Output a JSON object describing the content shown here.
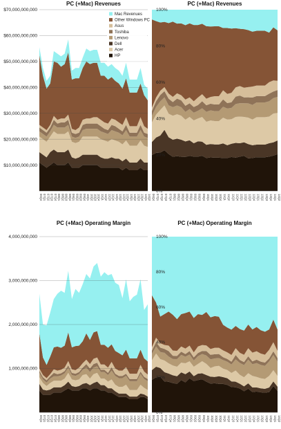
{
  "chart_data": [
    {
      "type": "area",
      "mode": "absolute",
      "title": "PC (+Mac) Revenues",
      "ylim": [
        0,
        70000000000
      ],
      "yticks": [
        10000000000,
        20000000000,
        30000000000,
        40000000000,
        50000000000,
        60000000000,
        70000000000
      ],
      "ytick_labels": [
        "$10,000,000,000",
        "$20,000,000,000",
        "$30,000,000,000",
        "$40,000,000,000",
        "$50,000,000,000",
        "$60,000,000,000",
        "$70,000,000,000"
      ],
      "grid": true,
      "legend": "top-right",
      "categories": [
        "06Q4",
        "07Q1",
        "07Q2",
        "07Q3",
        "07Q4",
        "08Q1",
        "08Q2",
        "08Q3",
        "08Q4",
        "09Q1",
        "09Q2",
        "09Q3",
        "09Q4",
        "10Q1",
        "10Q2",
        "10Q3",
        "10Q4",
        "11Q1",
        "11Q2",
        "11Q3",
        "11Q4",
        "12Q1",
        "12Q2",
        "12Q3",
        "12Q4",
        "13Q1",
        "13Q2",
        "13Q3",
        "13Q4",
        "14Q1",
        "14Q2"
      ],
      "series": [
        {
          "name": "HP",
          "values": [
            11,
            10,
            9,
            10,
            11,
            10,
            10,
            10,
            11,
            9,
            9,
            9,
            10,
            10,
            10,
            10,
            10,
            9,
            9,
            9,
            9,
            9,
            9,
            8,
            9,
            8,
            8,
            8,
            9,
            8,
            8
          ]
        },
        {
          "name": "Dell",
          "values": [
            4,
            4,
            4,
            5,
            5,
            5,
            5,
            5,
            5,
            4,
            3.5,
            4,
            4,
            4,
            4,
            4,
            4,
            4,
            3.5,
            3.5,
            4,
            3.5,
            3.5,
            3.5,
            3.5,
            3,
            3,
            3,
            3.5,
            3,
            3
          ]
        },
        {
          "name": "Acer",
          "values": [
            6,
            6,
            6,
            6,
            7,
            7,
            7,
            7,
            7,
            6,
            6,
            6,
            7,
            7,
            7,
            7,
            7,
            7,
            7,
            6.5,
            7,
            7,
            6.5,
            6.5,
            7,
            6.5,
            6.5,
            6.5,
            7,
            6.5,
            6
          ]
        },
        {
          "name": "Lenovo",
          "values": [
            2,
            2,
            2,
            2,
            2.5,
            2.5,
            2.5,
            2.5,
            2.5,
            2,
            2,
            2,
            2.5,
            3,
            3,
            3,
            3,
            3,
            3,
            3,
            3.5,
            3.5,
            3.5,
            3.5,
            4,
            3.5,
            3.5,
            3.5,
            4,
            3.5,
            3.5
          ]
        },
        {
          "name": "Toshiba",
          "values": [
            1.5,
            1.5,
            1.5,
            1.5,
            2,
            1.5,
            2,
            2,
            2,
            1.5,
            1.5,
            1.5,
            2,
            2,
            2,
            2,
            2,
            2,
            1.5,
            1.5,
            2,
            2,
            1.5,
            1.5,
            2,
            1.5,
            1.5,
            1.5,
            2,
            1.5,
            1.5
          ]
        },
        {
          "name": "Asus",
          "values": [
            1,
            1,
            1,
            1,
            1.5,
            1.5,
            1.5,
            1.5,
            2,
            1.5,
            1.5,
            2,
            2,
            2,
            2,
            2.5,
            2.5,
            2.5,
            2.5,
            2.5,
            2.5,
            2.5,
            2.5,
            2.5,
            3,
            2.5,
            2.5,
            2.5,
            3,
            2.5,
            2
          ]
        },
        {
          "name": "Other Windows PC",
          "values": [
            27,
            20,
            16,
            16,
            21,
            22,
            20,
            21,
            24,
            19,
            20,
            19,
            20,
            22,
            21,
            21,
            21,
            17,
            18,
            17,
            16,
            15,
            15,
            14,
            15,
            13,
            13,
            13,
            13,
            12,
            11
          ]
        },
        {
          "name": "Mac Revenues",
          "values": [
            3,
            3,
            3,
            3,
            4,
            3.5,
            4,
            4,
            5,
            3.5,
            4,
            4,
            4,
            5,
            5,
            5,
            5,
            5,
            5,
            5,
            5,
            5,
            5,
            5,
            6,
            5,
            5,
            5,
            6,
            4,
            4.5
          ]
        }
      ]
    },
    {
      "type": "area",
      "mode": "percent",
      "title": "PC (+Mac) Revenues",
      "ylim": [
        0,
        100
      ],
      "yticks": [
        0,
        20,
        40,
        60,
        80,
        100
      ],
      "ytick_labels": [
        "0%",
        "20%",
        "40%",
        "60%",
        "80%",
        "100%"
      ],
      "categories": [
        "06Q4",
        "07Q1",
        "07Q2",
        "07Q3",
        "07Q4",
        "08Q1",
        "08Q2",
        "08Q3",
        "08Q4",
        "09Q1",
        "09Q2",
        "09Q3",
        "09Q4",
        "10Q1",
        "10Q2",
        "10Q3",
        "10Q4",
        "11Q1",
        "11Q2",
        "11Q3",
        "11Q4",
        "12Q1",
        "12Q2",
        "12Q3",
        "12Q4",
        "13Q1",
        "13Q2",
        "13Q3",
        "13Q4",
        "14Q1",
        "14Q2"
      ],
      "series_ref": 0
    },
    {
      "type": "area",
      "mode": "absolute",
      "title": "PC (+Mac) Operating Margin",
      "ylim": [
        0,
        4000000000
      ],
      "yticks": [
        1000000000,
        2000000000,
        3000000000,
        4000000000
      ],
      "ytick_labels": [
        "1,000,000,000",
        "2,000,000,000",
        "3,000,000,000",
        "4,000,000,000"
      ],
      "grid": true,
      "categories": [
        "06Q4",
        "07Q1",
        "07Q2",
        "07Q3",
        "07Q4",
        "08Q1",
        "08Q2",
        "08Q3",
        "08Q4",
        "09Q1",
        "09Q2",
        "09Q3",
        "09Q4",
        "10Q1",
        "10Q2",
        "10Q3",
        "10Q4",
        "11Q1",
        "11Q2",
        "11Q3",
        "11Q4",
        "12Q1",
        "12Q2",
        "12Q3",
        "12Q4",
        "13Q1",
        "13Q2",
        "13Q3",
        "13Q4",
        "14Q1",
        "14Q2"
      ],
      "series": [
        {
          "name": "HP",
          "values": [
            0.5,
            0.4,
            0.4,
            0.4,
            0.45,
            0.45,
            0.45,
            0.5,
            0.55,
            0.5,
            0.5,
            0.5,
            0.55,
            0.55,
            0.5,
            0.55,
            0.55,
            0.5,
            0.5,
            0.45,
            0.45,
            0.4,
            0.35,
            0.35,
            0.35,
            0.3,
            0.3,
            0.3,
            0.35,
            0.35,
            0.3
          ]
        },
        {
          "name": "Dell",
          "values": [
            0.15,
            0.12,
            0.1,
            0.12,
            0.12,
            0.12,
            0.12,
            0.12,
            0.15,
            0.1,
            0.08,
            0.1,
            0.1,
            0.12,
            0.12,
            0.12,
            0.15,
            0.12,
            0.12,
            0.1,
            0.1,
            0.08,
            0.08,
            0.08,
            0.08,
            0.06,
            0.06,
            0.06,
            0.08,
            0.06,
            0.06
          ]
        },
        {
          "name": "Acer",
          "values": [
            0.15,
            0.15,
            0.1,
            0.15,
            0.15,
            0.15,
            0.15,
            0.15,
            0.2,
            0.15,
            0.15,
            0.15,
            0.2,
            0.2,
            0.15,
            0.2,
            0.2,
            0.15,
            0.15,
            0.15,
            0.2,
            0.15,
            0.15,
            0.15,
            0.2,
            0.15,
            0.15,
            0.15,
            0.2,
            0.15,
            0.15
          ]
        },
        {
          "name": "Lenovo",
          "values": [
            0.1,
            0.08,
            0.08,
            0.1,
            0.1,
            0.1,
            0.12,
            0.12,
            0.12,
            0.1,
            0.1,
            0.12,
            0.12,
            0.15,
            0.15,
            0.15,
            0.15,
            0.15,
            0.15,
            0.15,
            0.2,
            0.2,
            0.2,
            0.2,
            0.2,
            0.2,
            0.2,
            0.2,
            0.25,
            0.2,
            0.2
          ]
        },
        {
          "name": "Toshiba",
          "values": [
            0.05,
            0.05,
            0.05,
            0.05,
            0.08,
            0.05,
            0.05,
            0.05,
            0.05,
            0.05,
            0.05,
            0.05,
            0.05,
            0.08,
            0.08,
            0.08,
            0.08,
            0.05,
            0.05,
            0.05,
            0.08,
            0.05,
            0.05,
            0.05,
            0.05,
            0.05,
            0.05,
            0.05,
            0.05,
            0.05,
            0.05
          ]
        },
        {
          "name": "Asus",
          "values": [
            0.05,
            0.05,
            0.05,
            0.05,
            0.08,
            0.08,
            0.08,
            0.08,
            0.1,
            0.08,
            0.08,
            0.1,
            0.1,
            0.1,
            0.1,
            0.12,
            0.12,
            0.12,
            0.12,
            0.12,
            0.12,
            0.12,
            0.12,
            0.12,
            0.15,
            0.12,
            0.12,
            0.12,
            0.15,
            0.12,
            0.1
          ]
        },
        {
          "name": "Other Windows PC",
          "values": [
            0.8,
            0.4,
            0.3,
            0.4,
            0.5,
            0.55,
            0.5,
            0.5,
            0.65,
            0.5,
            0.55,
            0.5,
            0.5,
            0.6,
            0.55,
            0.6,
            0.6,
            0.45,
            0.45,
            0.45,
            0.4,
            0.4,
            0.4,
            0.35,
            0.4,
            0.35,
            0.35,
            0.35,
            0.35,
            0.3,
            0.3
          ]
        },
        {
          "name": "Mac Revenues",
          "values": [
            0.9,
            0.75,
            0.9,
            1.0,
            1.1,
            1.2,
            1.3,
            1.2,
            1.4,
            1.1,
            1.3,
            1.2,
            1.3,
            1.35,
            1.4,
            1.5,
            1.55,
            1.55,
            1.65,
            1.65,
            1.6,
            1.55,
            1.55,
            1.3,
            1.6,
            1.3,
            1.4,
            1.45,
            1.6,
            1.1,
            1.3
          ]
        }
      ]
    },
    {
      "type": "area",
      "mode": "percent",
      "title": "PC (+Mac) Operating Margin",
      "ylim": [
        0,
        100
      ],
      "yticks": [
        0,
        20,
        40,
        60,
        80,
        100
      ],
      "ytick_labels": [
        "0%",
        "20%",
        "40%",
        "60%",
        "80%",
        "100%"
      ],
      "categories": [
        "06Q4",
        "07Q1",
        "07Q2",
        "07Q3",
        "07Q4",
        "08Q1",
        "08Q2",
        "08Q3",
        "08Q4",
        "09Q1",
        "09Q2",
        "09Q3",
        "09Q4",
        "10Q1",
        "10Q2",
        "10Q3",
        "10Q4",
        "11Q1",
        "11Q2",
        "11Q3",
        "11Q4",
        "12Q1",
        "12Q2",
        "12Q3",
        "12Q4",
        "13Q1",
        "13Q2",
        "13Q3",
        "13Q4",
        "14Q1",
        "14Q2"
      ],
      "series_ref": 2
    }
  ],
  "legend": {
    "entries": [
      "Mac Revenues",
      "Other Windows PC",
      "Asus",
      "Toshiba",
      "Lenovo",
      "Dell",
      "Acer",
      "HP"
    ]
  },
  "colors": {
    "HP": "#201409",
    "Dell": "#4a3626",
    "Acer": "#ddc9a6",
    "Lenovo": "#b49a74",
    "Toshiba": "#8f7358",
    "Asus": "#d6be9a",
    "Other Windows PC": "#855436",
    "Mac Revenues": "#96f0f0"
  }
}
